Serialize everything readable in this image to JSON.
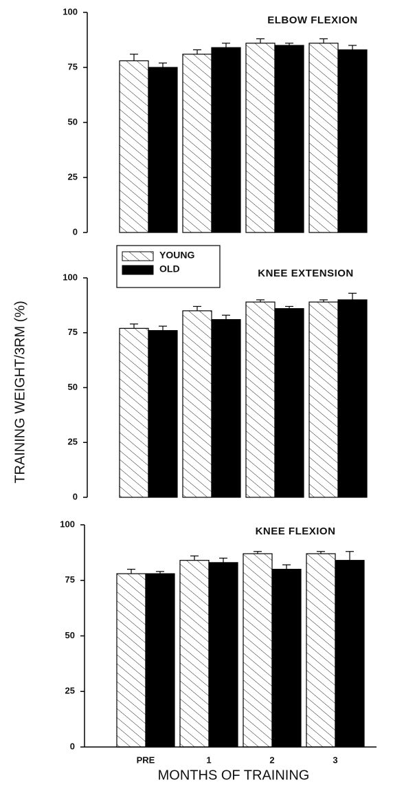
{
  "ylabel": "TRAINING WEIGHT/3RM (%)",
  "xlabel": "MONTHS OF TRAINING",
  "chart_data": [
    {
      "type": "bar",
      "title": "ELBOW FLEXION",
      "ylim": [
        0,
        100
      ],
      "yticks": [
        0,
        25,
        50,
        75,
        100
      ],
      "series": [
        {
          "fill": "hatch",
          "color": "#000000",
          "values": [
            78,
            81,
            86,
            86
          ],
          "errors": [
            3,
            2,
            2,
            2
          ]
        },
        {
          "fill": "solid",
          "color": "#000000",
          "values": [
            75,
            84,
            85,
            83
          ],
          "errors": [
            2,
            2,
            1,
            2
          ]
        }
      ]
    },
    {
      "type": "bar",
      "title": "KNEE EXTENSION",
      "ylim": [
        0,
        100
      ],
      "yticks": [
        0,
        25,
        50,
        75,
        100
      ],
      "series": [
        {
          "name": "YOUNG",
          "fill": "hatch",
          "color": "#000000",
          "values": [
            77,
            85,
            89,
            89
          ],
          "errors": [
            2,
            2,
            1,
            1
          ]
        },
        {
          "name": "OLD",
          "fill": "solid",
          "color": "#000000",
          "values": [
            76,
            81,
            86,
            90
          ],
          "errors": [
            2,
            2,
            1,
            3
          ]
        }
      ]
    },
    {
      "type": "bar",
      "title": "KNEE FLEXION",
      "categories": [
        "PRE",
        "1",
        "2",
        "3"
      ],
      "ylim": [
        0,
        100
      ],
      "yticks": [
        0,
        25,
        50,
        75,
        100
      ],
      "series": [
        {
          "fill": "hatch",
          "color": "#000000",
          "values": [
            78,
            84,
            87,
            87
          ],
          "errors": [
            2,
            2,
            1,
            1
          ]
        },
        {
          "fill": "solid",
          "color": "#000000",
          "values": [
            78,
            83,
            80,
            84
          ],
          "errors": [
            1,
            2,
            2,
            4
          ]
        }
      ]
    }
  ]
}
